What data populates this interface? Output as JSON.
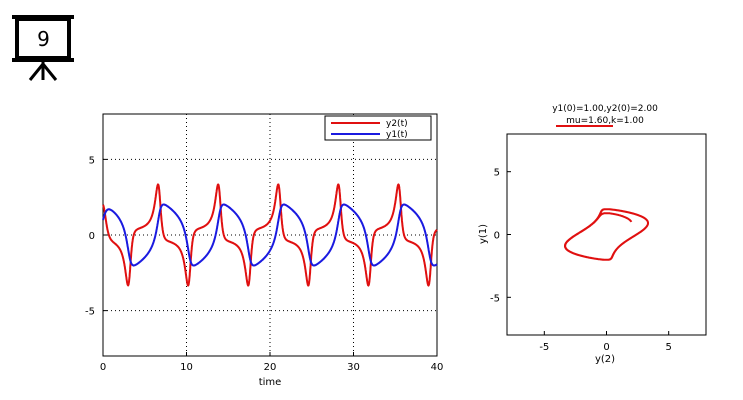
{
  "slide": {
    "number": "9"
  },
  "chart_data": [
    {
      "type": "line",
      "title": "",
      "xlabel": "time",
      "ylabel": "",
      "xlim": [
        0,
        40
      ],
      "ylim": [
        -8,
        8
      ],
      "xticks": [
        "0",
        "10",
        "20",
        "30",
        "40"
      ],
      "xtick_values": [
        0,
        10,
        20,
        30,
        40
      ],
      "yticks": [
        "5",
        "0",
        "-5"
      ],
      "ytick_values": [
        5,
        0,
        -5
      ],
      "grid": true,
      "legend_position": "top-right",
      "model": {
        "mu": 1.6,
        "k": 1.0,
        "y1_0": 1.0,
        "y2_0": 2.0,
        "t_end": 40
      },
      "series": [
        {
          "name": "y2(t)",
          "color": "#e01010"
        },
        {
          "name": "y1(t)",
          "color": "#1a1ae0"
        }
      ]
    },
    {
      "type": "line",
      "title": "y1(0)=1.00,y2(0)=2.00",
      "subtitle": "mu=1.60,k=1.00",
      "xlabel": "y(2)",
      "ylabel": "y(1)",
      "xlim": [
        -8,
        8
      ],
      "ylim": [
        -8,
        8
      ],
      "xticks": [
        "-5",
        "0",
        "5"
      ],
      "xtick_values": [
        -5,
        0,
        5
      ],
      "yticks": [
        "5",
        "0",
        "-5"
      ],
      "ytick_values": [
        5,
        0,
        -5
      ],
      "grid": false,
      "series": [
        {
          "color": "#e01010"
        }
      ]
    }
  ]
}
